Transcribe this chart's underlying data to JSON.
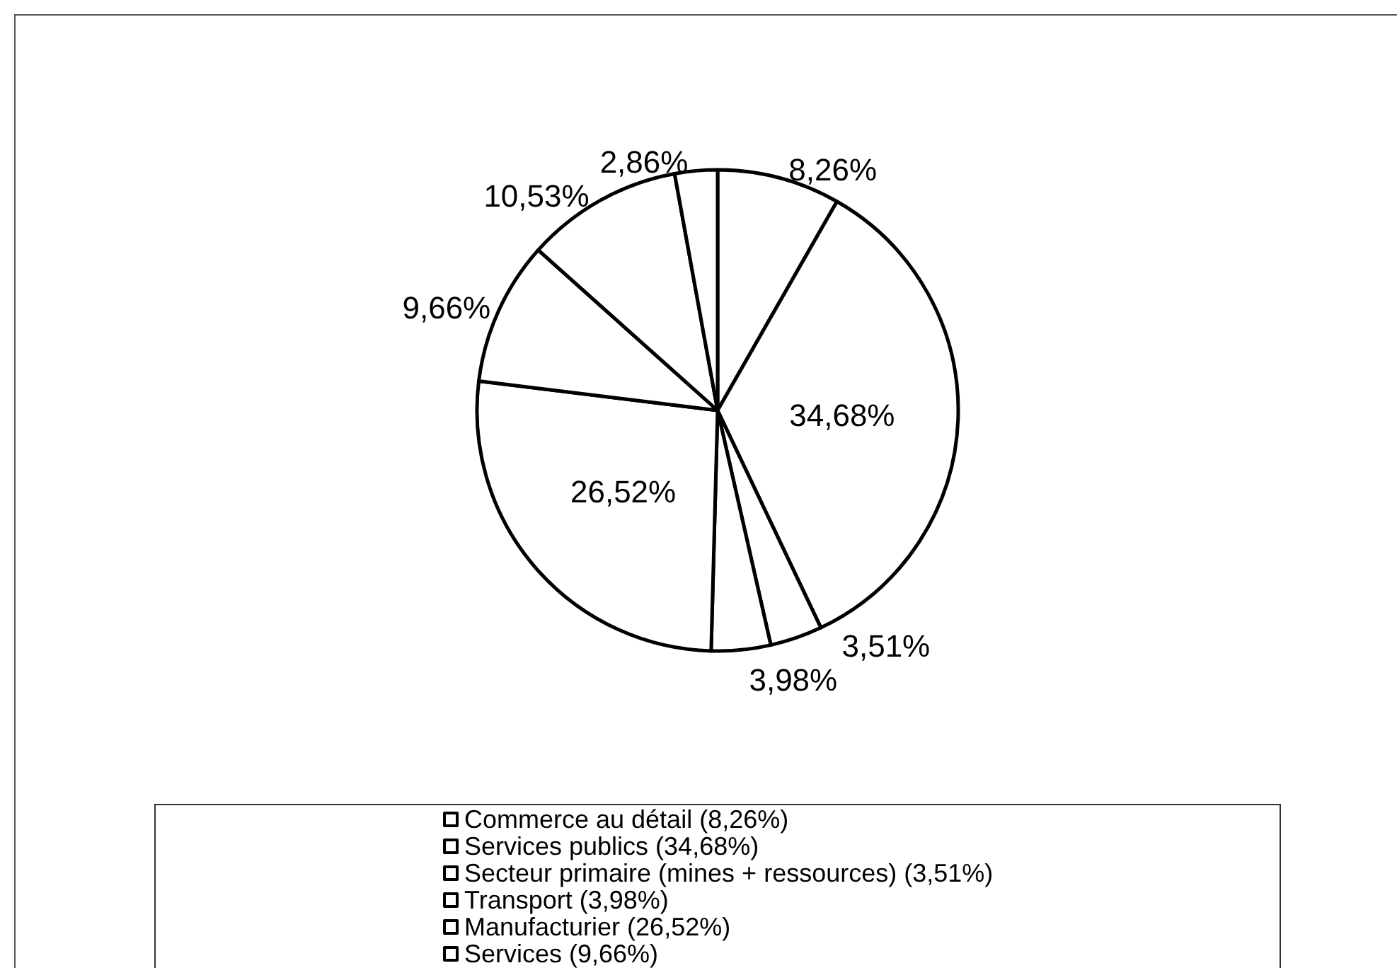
{
  "chart_data": {
    "type": "pie",
    "categories": [
      "Commerce au détail (8,26%)",
      "Services publics (34,68%)",
      "Secteur primaire (mines + ressources) (3,51%)",
      "Transport (3,98%)",
      "Manufacturier (26,52%)",
      "Services (9,66%)",
      null,
      null
    ],
    "values": [
      8.26,
      34.68,
      3.51,
      3.98,
      26.52,
      9.66,
      10.53,
      2.86
    ],
    "value_labels": [
      "8,26%",
      "34,68%",
      "3,51%",
      "3,98%",
      "26,52%",
      "9,66%",
      "10,53%",
      "2,86%"
    ],
    "colors": [
      "#ffffff",
      "#ffffff",
      "#ffffff",
      "#ffffff",
      "#ffffff",
      "#ffffff",
      "#ffffff",
      "#ffffff"
    ],
    "legend": "bottom"
  }
}
